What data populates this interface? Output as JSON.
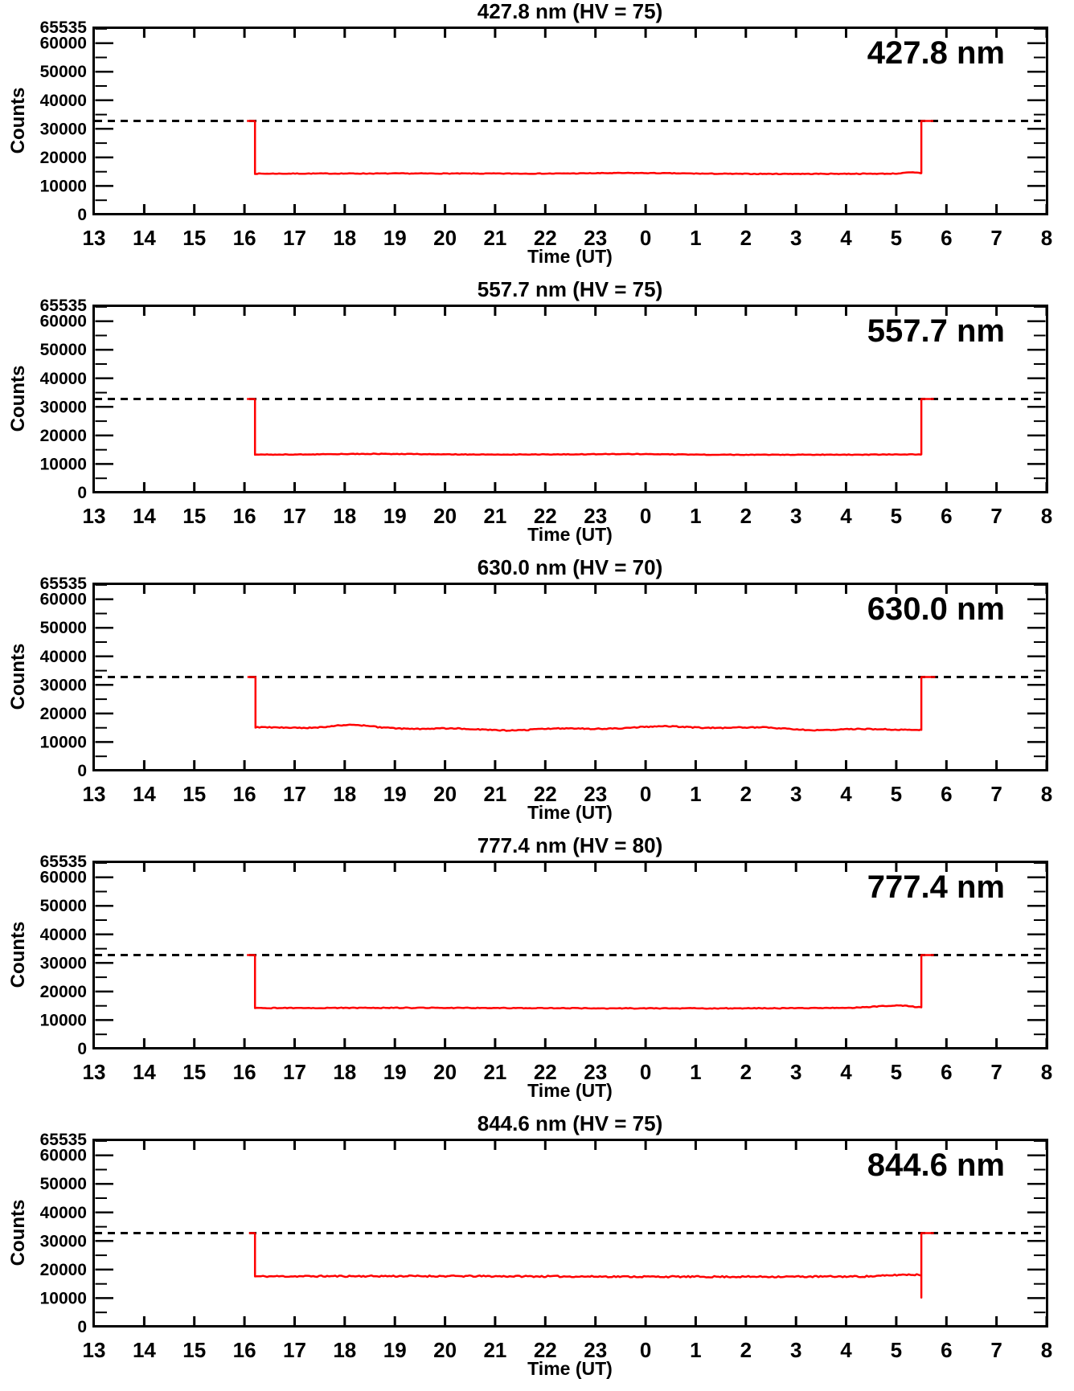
{
  "figure": {
    "background": "#ffffff",
    "axis_color": "#000000",
    "trace_color": "#ff0000"
  },
  "chart_data": [
    {
      "type": "line",
      "title": "427.8 nm (HV = 75)",
      "annotation": "427.8 nm",
      "hv": 75,
      "xlabel": "Time (UT)",
      "ylabel": "Counts",
      "x_tick_labels": [
        "13",
        "14",
        "15",
        "16",
        "17",
        "18",
        "19",
        "20",
        "21",
        "22",
        "23",
        "0",
        "1",
        "2",
        "3",
        "4",
        "5",
        "6",
        "7",
        "8"
      ],
      "y_tick_values": [
        0,
        10000,
        20000,
        30000,
        40000,
        50000,
        60000,
        65535
      ],
      "y_minor_step": 5000,
      "ylim": [
        0,
        65535
      ],
      "x_range_hours": [
        13,
        32
      ],
      "dashed_line_y": 32767,
      "series": {
        "name": "counts",
        "color": "#ff0000",
        "key_points": {
          "appear": 16.05,
          "drop": 16.21,
          "rise": 29.5,
          "end": 29.74,
          "low": 14300,
          "high": 32767
        },
        "noise": {
          "wave_amp": 70,
          "wave_freq": 0.5,
          "wave_amp2": 0,
          "wave_freq2": 0,
          "jitter": 110,
          "bumps": [
            [
              23.8,
              0.9,
              280
            ],
            [
              29.3,
              0.15,
              400
            ]
          ]
        }
      }
    },
    {
      "type": "line",
      "title": "557.7 nm (HV = 75)",
      "annotation": "557.7 nm",
      "hv": 75,
      "xlabel": "Time (UT)",
      "ylabel": "Counts",
      "x_tick_labels": [
        "13",
        "14",
        "15",
        "16",
        "17",
        "18",
        "19",
        "20",
        "21",
        "22",
        "23",
        "0",
        "1",
        "2",
        "3",
        "4",
        "5",
        "6",
        "7",
        "8"
      ],
      "y_tick_values": [
        0,
        10000,
        20000,
        30000,
        40000,
        50000,
        60000,
        65535
      ],
      "y_minor_step": 5000,
      "ylim": [
        0,
        65535
      ],
      "x_range_hours": [
        13,
        32
      ],
      "dashed_line_y": 32767,
      "series": {
        "name": "counts",
        "color": "#ff0000",
        "key_points": {
          "appear": 16.05,
          "drop": 16.21,
          "rise": 29.5,
          "end": 29.75,
          "low": 13300,
          "high": 32767
        },
        "noise": {
          "wave_amp": 60,
          "wave_freq": 0.5,
          "wave_amp2": 0,
          "wave_freq2": 0,
          "jitter": 100,
          "bumps": [
            [
              18.6,
              0.7,
              200
            ],
            [
              23.6,
              0.9,
              220
            ]
          ]
        }
      }
    },
    {
      "type": "line",
      "title": "630.0 nm (HV = 70)",
      "annotation": "630.0 nm",
      "hv": 70,
      "xlabel": "Time (UT)",
      "ylabel": "Counts",
      "x_tick_labels": [
        "13",
        "14",
        "15",
        "16",
        "17",
        "18",
        "19",
        "20",
        "21",
        "22",
        "23",
        "0",
        "1",
        "2",
        "3",
        "4",
        "5",
        "6",
        "7",
        "8"
      ],
      "y_tick_values": [
        0,
        10000,
        20000,
        30000,
        40000,
        50000,
        60000,
        65535
      ],
      "y_minor_step": 5000,
      "ylim": [
        0,
        65535
      ],
      "x_range_hours": [
        13,
        32
      ],
      "dashed_line_y": 32767,
      "series": {
        "name": "counts",
        "color": "#ff0000",
        "key_points": {
          "appear": 16.06,
          "drop": 16.22,
          "rise": 29.5,
          "end": 29.78,
          "low": 14800,
          "high": 32767
        },
        "noise": {
          "wave_amp": 480,
          "wave_freq": 0.9,
          "wave_amp2": 260,
          "wave_freq2": 3.1,
          "jitter": 180,
          "bumps": [
            [
              18.1,
              0.3,
              500
            ]
          ]
        }
      }
    },
    {
      "type": "line",
      "title": "777.4 nm (HV = 80)",
      "annotation": "777.4 nm",
      "hv": 80,
      "xlabel": "Time (UT)",
      "ylabel": "Counts",
      "x_tick_labels": [
        "13",
        "14",
        "15",
        "16",
        "17",
        "18",
        "19",
        "20",
        "21",
        "22",
        "23",
        "0",
        "1",
        "2",
        "3",
        "4",
        "5",
        "6",
        "7",
        "8"
      ],
      "y_tick_values": [
        0,
        10000,
        20000,
        30000,
        40000,
        50000,
        60000,
        65535
      ],
      "y_minor_step": 5000,
      "ylim": [
        0,
        65535
      ],
      "x_range_hours": [
        13,
        32
      ],
      "dashed_line_y": 32767,
      "series": {
        "name": "counts",
        "color": "#ff0000",
        "key_points": {
          "appear": 16.05,
          "drop": 16.21,
          "rise": 29.5,
          "end": 29.75,
          "low": 14200,
          "high": 32767
        },
        "noise": {
          "wave_amp": 90,
          "wave_freq": 0.55,
          "wave_amp2": 0,
          "wave_freq2": 0,
          "jitter": 130,
          "bumps": [
            [
              29.05,
              0.45,
              850
            ],
            [
              29.42,
              0.1,
              -350
            ]
          ]
        }
      }
    },
    {
      "type": "line",
      "title": "844.6 nm (HV = 75)",
      "annotation": "844.6 nm",
      "hv": 75,
      "xlabel": "Time (UT)",
      "ylabel": "Counts",
      "x_tick_labels": [
        "13",
        "14",
        "15",
        "16",
        "17",
        "18",
        "19",
        "20",
        "21",
        "22",
        "23",
        "0",
        "1",
        "2",
        "3",
        "4",
        "5",
        "6",
        "7",
        "8"
      ],
      "y_tick_values": [
        0,
        10000,
        20000,
        30000,
        40000,
        50000,
        60000,
        65535
      ],
      "y_minor_step": 5000,
      "ylim": [
        0,
        65535
      ],
      "x_range_hours": [
        13,
        32
      ],
      "dashed_line_y": 32767,
      "series": {
        "name": "counts",
        "color": "#ff0000",
        "key_points": {
          "appear": 16.09,
          "drop": 16.21,
          "rise": 29.5,
          "end": 29.75,
          "low": 17600,
          "high": 32767,
          "spike_low": 10200
        },
        "noise": {
          "wave_amp": 110,
          "wave_freq": 0.5,
          "wave_amp2": 0,
          "wave_freq2": 0,
          "jitter": 260,
          "bumps": [
            [
              29.25,
              0.35,
              600
            ]
          ]
        }
      }
    }
  ]
}
